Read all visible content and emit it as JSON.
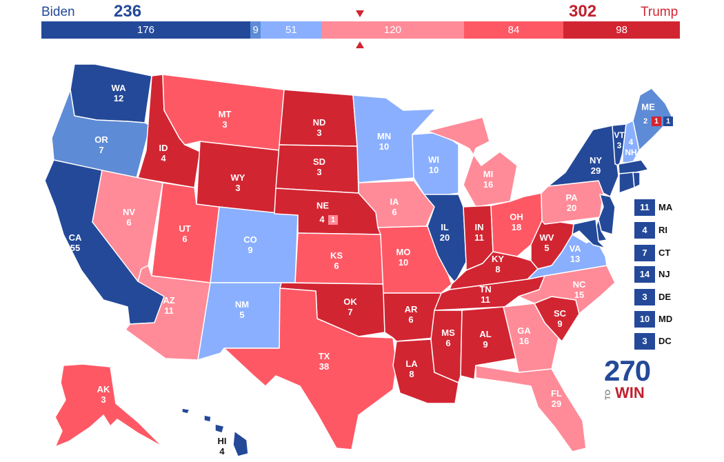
{
  "header": {
    "dem_name": "Biden",
    "dem_total": "236",
    "rep_name": "Trump",
    "rep_total": "302"
  },
  "colors": {
    "safe_d": "#244999",
    "likely_d": "#5E8BD5",
    "lean_d": "#8AAFFF",
    "lean_r": "#FF8B98",
    "likely_r": "#FF5865",
    "safe_r": "#D22532"
  },
  "bar_segments": [
    {
      "label": "176",
      "value": 176,
      "category": "safe_d"
    },
    {
      "label": "9",
      "value": 9,
      "category": "likely_d"
    },
    {
      "label": "51",
      "value": 51,
      "category": "lean_d"
    },
    {
      "label": "120",
      "value": 120,
      "category": "lean_r"
    },
    {
      "label": "84",
      "value": 84,
      "category": "likely_r"
    },
    {
      "label": "98",
      "value": 98,
      "category": "safe_r"
    }
  ],
  "states": [
    {
      "abbr": "WA",
      "ev": "12",
      "category": "safe_d"
    },
    {
      "abbr": "OR",
      "ev": "7",
      "category": "likely_d"
    },
    {
      "abbr": "CA",
      "ev": "55",
      "category": "safe_d"
    },
    {
      "abbr": "ID",
      "ev": "4",
      "category": "safe_r"
    },
    {
      "abbr": "NV",
      "ev": "6",
      "category": "lean_r"
    },
    {
      "abbr": "UT",
      "ev": "6",
      "category": "likely_r"
    },
    {
      "abbr": "AZ",
      "ev": "11",
      "category": "lean_r"
    },
    {
      "abbr": "MT",
      "ev": "3",
      "category": "likely_r"
    },
    {
      "abbr": "WY",
      "ev": "3",
      "category": "safe_r"
    },
    {
      "abbr": "CO",
      "ev": "9",
      "category": "lean_d"
    },
    {
      "abbr": "NM",
      "ev": "5",
      "category": "lean_d"
    },
    {
      "abbr": "ND",
      "ev": "3",
      "category": "safe_r"
    },
    {
      "abbr": "SD",
      "ev": "3",
      "category": "safe_r"
    },
    {
      "abbr": "NE",
      "ev": "4",
      "category": "safe_r"
    },
    {
      "abbr": "KS",
      "ev": "6",
      "category": "likely_r"
    },
    {
      "abbr": "OK",
      "ev": "7",
      "category": "safe_r"
    },
    {
      "abbr": "TX",
      "ev": "38",
      "category": "likely_r"
    },
    {
      "abbr": "MN",
      "ev": "10",
      "category": "lean_d"
    },
    {
      "abbr": "IA",
      "ev": "6",
      "category": "lean_r"
    },
    {
      "abbr": "MO",
      "ev": "10",
      "category": "likely_r"
    },
    {
      "abbr": "AR",
      "ev": "6",
      "category": "safe_r"
    },
    {
      "abbr": "LA",
      "ev": "8",
      "category": "safe_r"
    },
    {
      "abbr": "WI",
      "ev": "10",
      "category": "lean_d"
    },
    {
      "abbr": "IL",
      "ev": "20",
      "category": "safe_d"
    },
    {
      "abbr": "MI",
      "ev": "16",
      "category": "lean_r"
    },
    {
      "abbr": "IN",
      "ev": "11",
      "category": "safe_r"
    },
    {
      "abbr": "OH",
      "ev": "18",
      "category": "likely_r"
    },
    {
      "abbr": "KY",
      "ev": "8",
      "category": "safe_r"
    },
    {
      "abbr": "TN",
      "ev": "11",
      "category": "safe_r"
    },
    {
      "abbr": "MS",
      "ev": "6",
      "category": "safe_r"
    },
    {
      "abbr": "AL",
      "ev": "9",
      "category": "safe_r"
    },
    {
      "abbr": "GA",
      "ev": "16",
      "category": "lean_r"
    },
    {
      "abbr": "FL",
      "ev": "29",
      "category": "lean_r"
    },
    {
      "abbr": "SC",
      "ev": "9",
      "category": "safe_r"
    },
    {
      "abbr": "NC",
      "ev": "15",
      "category": "lean_r"
    },
    {
      "abbr": "VA",
      "ev": "13",
      "category": "lean_d"
    },
    {
      "abbr": "WV",
      "ev": "5",
      "category": "safe_r"
    },
    {
      "abbr": "PA",
      "ev": "20",
      "category": "lean_r"
    },
    {
      "abbr": "NY",
      "ev": "29",
      "category": "safe_d"
    },
    {
      "abbr": "VT",
      "ev": "3",
      "category": "safe_d"
    },
    {
      "abbr": "NH",
      "ev": "4",
      "category": "lean_d"
    },
    {
      "abbr": "ME",
      "ev": "",
      "category": "likely_d"
    },
    {
      "abbr": "AK",
      "ev": "3",
      "category": "likely_r"
    },
    {
      "abbr": "HI",
      "ev": "4",
      "category": "safe_d"
    }
  ],
  "split_districts": {
    "ne_district": "1",
    "me_statewide": "2",
    "me_district_r": "1",
    "me_district_d": "1"
  },
  "small_states": [
    {
      "ev": "11",
      "abbr": "MA"
    },
    {
      "ev": "4",
      "abbr": "RI"
    },
    {
      "ev": "7",
      "abbr": "CT"
    },
    {
      "ev": "14",
      "abbr": "NJ"
    },
    {
      "ev": "3",
      "abbr": "DE"
    },
    {
      "ev": "10",
      "abbr": "MD"
    },
    {
      "ev": "3",
      "abbr": "DC"
    }
  ],
  "logo": {
    "top": "270",
    "to": "TO",
    "win": "WIN"
  }
}
